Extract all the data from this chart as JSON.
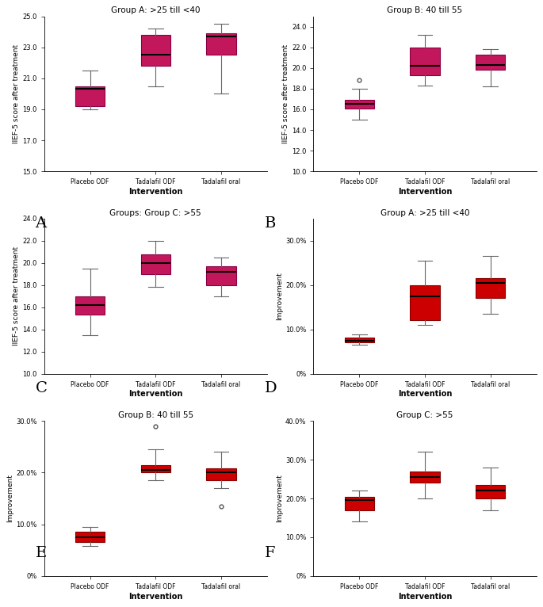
{
  "plots": [
    {
      "title": "Group A: >25 till <40",
      "ylabel": "IIEF-5 score after treatment",
      "xlabel": "Intervention",
      "ylim": [
        15.0,
        25.0
      ],
      "yticks": [
        15.0,
        17.0,
        19.0,
        21.0,
        23.0,
        25.0
      ],
      "yticklabels": [
        "15.0",
        "17.0",
        "19.0",
        "21.0",
        "23.0",
        "25.0"
      ],
      "color": "#C2185B",
      "edge_color": "#8B0045",
      "label": "A",
      "is_percent": false,
      "boxes": [
        {
          "med": 20.3,
          "q1": 19.2,
          "q3": 20.5,
          "whislo": 19.0,
          "whishi": 21.5,
          "fliers": []
        },
        {
          "med": 22.5,
          "q1": 21.8,
          "q3": 23.8,
          "whislo": 20.5,
          "whishi": 24.2,
          "fliers": []
        },
        {
          "med": 23.7,
          "q1": 22.5,
          "q3": 23.9,
          "whislo": 20.0,
          "whishi": 24.5,
          "fliers": []
        }
      ],
      "xticklabels": [
        "Placebo ODF",
        "Tadalafil ODF",
        "Tadalafil oral"
      ]
    },
    {
      "title": "Group B: 40 till 55",
      "ylabel": "IIEF-5 score after treatment",
      "xlabel": "Intervention",
      "ylim": [
        10.0,
        25.0
      ],
      "yticks": [
        10.0,
        12.0,
        14.0,
        16.0,
        18.0,
        20.0,
        22.0,
        24.0
      ],
      "yticklabels": [
        "10.0",
        "12.0",
        "14.0",
        "16.0",
        "18.0",
        "20.0",
        "22.0",
        "24.0"
      ],
      "color": "#C2185B",
      "edge_color": "#8B0045",
      "label": "B",
      "is_percent": false,
      "boxes": [
        {
          "med": 16.5,
          "q1": 16.1,
          "q3": 16.9,
          "whislo": 15.0,
          "whishi": 18.0,
          "fliers": [
            18.8
          ]
        },
        {
          "med": 20.2,
          "q1": 19.3,
          "q3": 22.0,
          "whislo": 18.3,
          "whishi": 23.2,
          "fliers": []
        },
        {
          "med": 20.3,
          "q1": 19.8,
          "q3": 21.3,
          "whislo": 18.2,
          "whishi": 21.8,
          "fliers": []
        }
      ],
      "xticklabels": [
        "Placebo ODF",
        "Tadalafil ODF",
        "Tadalafil oral"
      ]
    },
    {
      "title": "Groups: Group C: >55",
      "ylabel": "IIEF-5 score after treatment",
      "xlabel": "Intervention",
      "ylim": [
        10.0,
        24.0
      ],
      "yticks": [
        10.0,
        12.0,
        14.0,
        16.0,
        18.0,
        20.0,
        22.0,
        24.0
      ],
      "yticklabels": [
        "10.0",
        "12.0",
        "14.0",
        "16.0",
        "18.0",
        "20.0",
        "22.0",
        "24.0"
      ],
      "color": "#C2185B",
      "edge_color": "#8B0045",
      "label": "C",
      "is_percent": false,
      "boxes": [
        {
          "med": 16.2,
          "q1": 15.3,
          "q3": 17.0,
          "whislo": 13.5,
          "whishi": 19.5,
          "fliers": []
        },
        {
          "med": 20.0,
          "q1": 19.0,
          "q3": 20.8,
          "whislo": 17.8,
          "whishi": 22.0,
          "fliers": []
        },
        {
          "med": 19.2,
          "q1": 18.0,
          "q3": 19.7,
          "whislo": 17.0,
          "whishi": 20.5,
          "fliers": []
        }
      ],
      "xticklabels": [
        "Placebo ODF",
        "Tadalafil ODF",
        "Tadalafil oral"
      ]
    },
    {
      "title": "Group A: >25 till <40",
      "ylabel": "Improvement",
      "xlabel": "Intervention",
      "ylim": [
        0.0,
        35.0
      ],
      "yticks": [
        0.0,
        10.0,
        20.0,
        30.0
      ],
      "yticklabels": [
        "0%",
        "10.0%",
        "20.0%",
        "30.0%"
      ],
      "color": "#CC0000",
      "edge_color": "#880000",
      "label": "D",
      "is_percent": true,
      "boxes": [
        {
          "med": 7.5,
          "q1": 7.0,
          "q3": 8.2,
          "whislo": 6.5,
          "whishi": 8.8,
          "fliers": []
        },
        {
          "med": 17.5,
          "q1": 12.0,
          "q3": 20.0,
          "whislo": 11.0,
          "whishi": 25.5,
          "fliers": []
        },
        {
          "med": 20.5,
          "q1": 17.0,
          "q3": 21.5,
          "whislo": 13.5,
          "whishi": 26.5,
          "fliers": []
        }
      ],
      "xticklabels": [
        "Placebo ODF",
        "Tadalafil ODF",
        "Tadalafil oral"
      ]
    },
    {
      "title": "Group B: 40 till 55",
      "ylabel": "Improvement",
      "xlabel": "Intervention",
      "ylim": [
        0.0,
        30.0
      ],
      "yticks": [
        0.0,
        10.0,
        20.0,
        30.0
      ],
      "yticklabels": [
        "0%",
        "10.0%",
        "20.0%",
        "30.0%"
      ],
      "color": "#CC0000",
      "edge_color": "#880000",
      "label": "E",
      "is_percent": true,
      "boxes": [
        {
          "med": 7.5,
          "q1": 6.5,
          "q3": 8.5,
          "whislo": 5.8,
          "whishi": 9.5,
          "fliers": []
        },
        {
          "med": 20.5,
          "q1": 20.0,
          "q3": 21.5,
          "whislo": 18.5,
          "whishi": 24.5,
          "fliers": [
            29.0
          ]
        },
        {
          "med": 20.0,
          "q1": 18.5,
          "q3": 20.8,
          "whislo": 17.0,
          "whishi": 24.0,
          "fliers": [
            13.5
          ]
        }
      ],
      "xticklabels": [
        "Placebo ODF",
        "Tadalafil ODF",
        "Tadalafil oral"
      ]
    },
    {
      "title": "Group C: >55",
      "ylabel": "Improvement",
      "xlabel": "Intervention",
      "ylim": [
        0.0,
        40.0
      ],
      "yticks": [
        0.0,
        10.0,
        20.0,
        30.0,
        40.0
      ],
      "yticklabels": [
        "0%",
        "10.0%",
        "20.0%",
        "30.0%",
        "40.0%"
      ],
      "color": "#CC0000",
      "edge_color": "#880000",
      "label": "F",
      "is_percent": true,
      "boxes": [
        {
          "med": 19.5,
          "q1": 17.0,
          "q3": 20.5,
          "whislo": 14.0,
          "whishi": 22.0,
          "fliers": []
        },
        {
          "med": 25.5,
          "q1": 24.0,
          "q3": 27.0,
          "whislo": 20.0,
          "whishi": 32.0,
          "fliers": []
        },
        {
          "med": 22.0,
          "q1": 20.0,
          "q3": 23.5,
          "whislo": 17.0,
          "whishi": 28.0,
          "fliers": []
        }
      ],
      "xticklabels": [
        "Placebo ODF",
        "Tadalafil ODF",
        "Tadalafil oral"
      ]
    }
  ]
}
